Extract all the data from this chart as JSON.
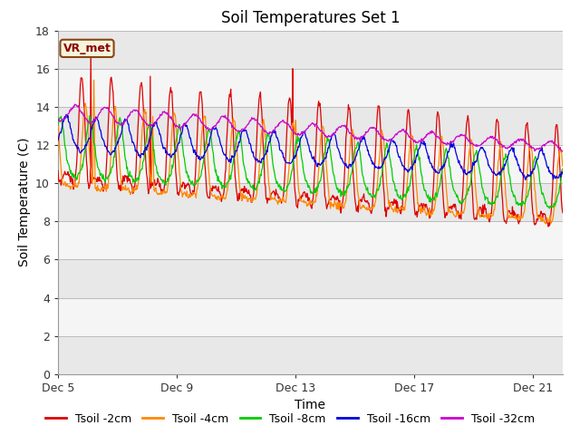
{
  "title": "Soil Temperatures Set 1",
  "xlabel": "Time",
  "ylabel": "Soil Temperature (C)",
  "ylim": [
    0,
    18
  ],
  "xlim_days": [
    0,
    17
  ],
  "tick_positions": [
    0,
    4,
    8,
    12,
    16
  ],
  "tick_labels": [
    "Dec 5",
    "Dec 9",
    "Dec 13",
    "Dec 17",
    "Dec 21"
  ],
  "annotation_text": "VR_met",
  "series_colors": [
    "#dd0000",
    "#ff8800",
    "#00cc00",
    "#0000dd",
    "#cc00cc"
  ],
  "series_labels": [
    "Tsoil -2cm",
    "Tsoil -4cm",
    "Tsoil -8cm",
    "Tsoil -16cm",
    "Tsoil -32cm"
  ],
  "band_color_even": "#e8e8e8",
  "band_color_odd": "#f5f5f5",
  "background_color": "#ffffff",
  "grid_color": "#bbbbbb",
  "title_fontsize": 12,
  "axis_label_fontsize": 10,
  "tick_fontsize": 9,
  "legend_fontsize": 9
}
